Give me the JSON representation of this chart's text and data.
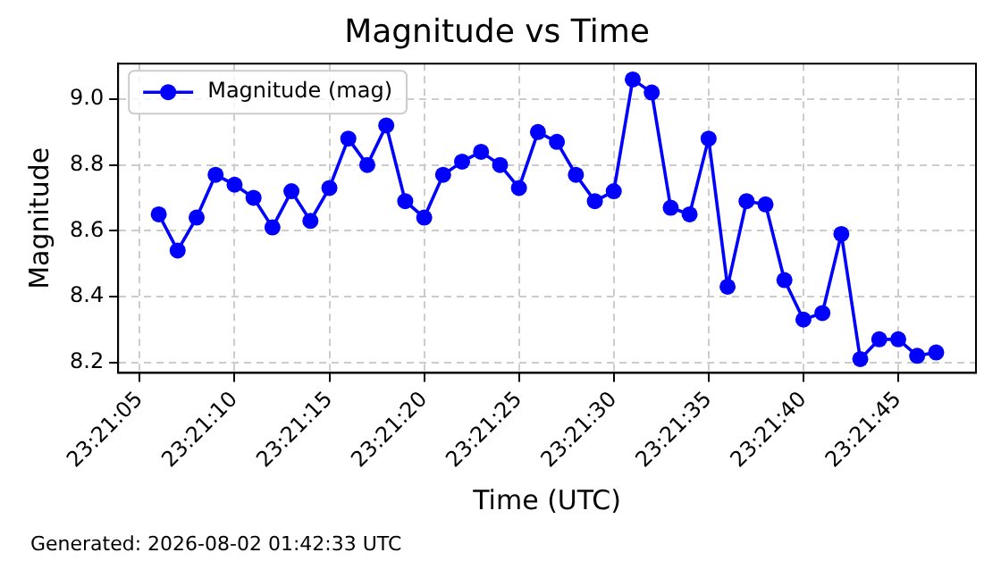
{
  "chart_data": {
    "type": "line",
    "title": "Magnitude vs Time",
    "xlabel": "Time (UTC)",
    "ylabel": "Magnitude",
    "annotations": [
      "Generated: 2026-08-02 01:42:33 UTC"
    ],
    "x": [
      23.351667,
      23.351944,
      23.352222,
      23.3525,
      23.352778,
      23.353056,
      23.353333,
      23.353611,
      23.353889,
      23.354167,
      23.354444,
      23.354722,
      23.355,
      23.355278,
      23.355556,
      23.355833,
      23.356111,
      23.356389,
      23.356667,
      23.356944,
      23.357222,
      23.3575,
      23.357778,
      23.358056,
      23.358333,
      23.358611,
      23.358889,
      23.359167,
      23.359444,
      23.359722,
      23.36,
      23.360278,
      23.360556,
      23.360833,
      23.361111,
      23.361389,
      23.361667,
      23.361944,
      23.362222,
      23.3625,
      23.362778,
      23.363056
    ],
    "series": [
      {
        "name": "Magnitude (mag)",
        "color": "#0000ff",
        "values": [
          8.65,
          8.54,
          8.64,
          8.77,
          8.74,
          8.7,
          8.61,
          8.72,
          8.63,
          8.73,
          8.88,
          8.8,
          8.92,
          8.69,
          8.64,
          8.77,
          8.81,
          8.84,
          8.8,
          8.73,
          8.9,
          8.87,
          8.77,
          8.69,
          8.72,
          9.06,
          9.02,
          8.67,
          8.65,
          8.88,
          8.43,
          8.69,
          8.68,
          8.45,
          8.33,
          8.35,
          8.59,
          8.21,
          8.27,
          8.27,
          8.22,
          8.23
        ]
      }
    ],
    "xlim": [
      23.351072,
      23.363639
    ],
    "xticks": [
      {
        "value": 23.351389,
        "label": "23:21:05"
      },
      {
        "value": 23.352778,
        "label": "23:21:10"
      },
      {
        "value": 23.354167,
        "label": "23:21:15"
      },
      {
        "value": 23.355556,
        "label": "23:21:20"
      },
      {
        "value": 23.356944,
        "label": "23:21:25"
      },
      {
        "value": 23.358333,
        "label": "23:21:30"
      },
      {
        "value": 23.359722,
        "label": "23:21:35"
      },
      {
        "value": 23.361111,
        "label": "23:21:40"
      },
      {
        "value": 23.3625,
        "label": "23:21:45"
      }
    ],
    "ylim": [
      8.168,
      9.108
    ],
    "yticks": [
      {
        "value": 8.2,
        "label": "8.2"
      },
      {
        "value": 8.4,
        "label": "8.4"
      },
      {
        "value": 8.6,
        "label": "8.6"
      },
      {
        "value": 8.8,
        "label": "8.8"
      },
      {
        "value": 9.0,
        "label": "9.0"
      }
    ],
    "grid": true,
    "legend": "top left",
    "marker": "circle",
    "line_style": "solid"
  }
}
